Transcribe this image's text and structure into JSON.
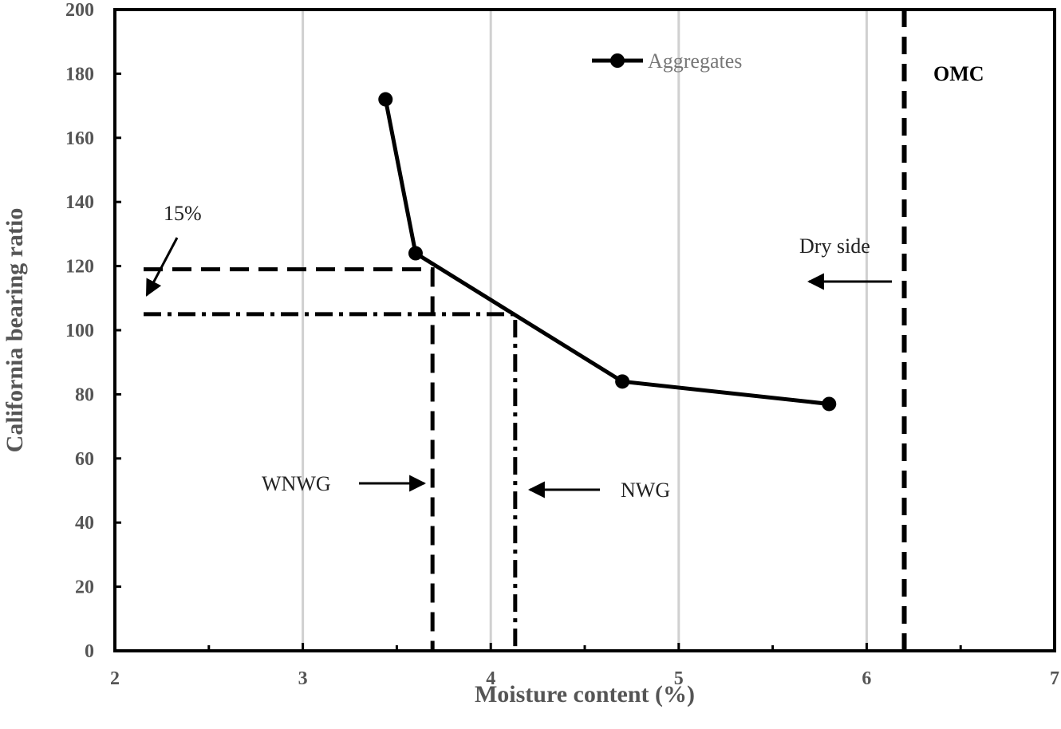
{
  "chart_data": {
    "type": "line",
    "xlabel": "Moisture content (%)",
    "ylabel": "California bearing ratio",
    "xlim": [
      2,
      7
    ],
    "ylim": [
      0,
      200
    ],
    "x_ticks": [
      2,
      3,
      4,
      5,
      6,
      7
    ],
    "y_ticks": [
      0,
      20,
      40,
      60,
      80,
      100,
      120,
      140,
      160,
      180,
      200
    ],
    "grid": "vertical major gridlines",
    "legend_position": "top-center",
    "series": [
      {
        "name": "Aggregates",
        "color": "#000000",
        "marker": "circle",
        "x": [
          3.44,
          3.6,
          4.7,
          5.8
        ],
        "y": [
          172,
          124,
          84,
          77
        ]
      }
    ],
    "reference_lines": {
      "omc": {
        "x": 6.2,
        "style": "dashed"
      },
      "wnwg": {
        "x": 3.69,
        "y": 119,
        "style": "dashed"
      },
      "nwg": {
        "x": 4.13,
        "y": 105,
        "style": "dash-dot"
      }
    },
    "annotations": {
      "omc": "OMC",
      "dry_side": "Dry side",
      "wnwg": "WNWG",
      "nwg": "NWG",
      "percent": "15%"
    }
  }
}
